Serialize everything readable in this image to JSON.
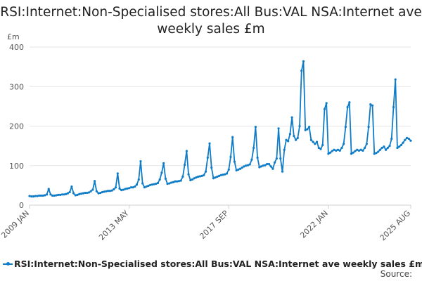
{
  "chart_data": {
    "type": "line",
    "title": "RSI:Internet:Non-Specialised stores:All Bus:VAL NSA:Internet ave weekly sales £m",
    "unit_label": "£m",
    "ylim": [
      0,
      400
    ],
    "yticks": [
      0,
      100,
      200,
      300,
      400
    ],
    "xlim": [
      "2009 JAN",
      "2025 AUG"
    ],
    "xtick_labels": [
      "2009 JAN",
      "2013 MAY",
      "2017 SEP",
      "2022 JAN",
      "2025 AUG"
    ],
    "grid": true,
    "legend_position": "bottom",
    "color": "#0f7cc7",
    "series": [
      {
        "name": "RSI:Internet:Non-Specialised stores:All Bus:VAL NSA:Internet ave weekly sales £m",
        "start": "2009-01",
        "values": [
          23,
          22,
          22,
          23,
          23,
          24,
          24,
          24,
          25,
          27,
          41,
          27,
          24,
          24,
          25,
          26,
          26,
          27,
          27,
          28,
          30,
          33,
          47,
          30,
          25,
          26,
          28,
          29,
          30,
          31,
          31,
          32,
          35,
          39,
          61,
          35,
          30,
          31,
          33,
          34,
          35,
          36,
          36,
          37,
          40,
          45,
          80,
          42,
          38,
          39,
          41,
          42,
          43,
          45,
          45,
          47,
          52,
          65,
          111,
          55,
          45,
          47,
          49,
          51,
          52,
          53,
          54,
          56,
          65,
          82,
          106,
          67,
          54,
          55,
          57,
          58,
          60,
          60,
          61,
          62,
          72,
          102,
          137,
          78,
          63,
          65,
          68,
          70,
          72,
          73,
          74,
          76,
          85,
          120,
          156,
          95,
          68,
          70,
          72,
          74,
          76,
          77,
          78,
          80,
          90,
          122,
          172,
          110,
          88,
          90,
          92,
          95,
          98,
          100,
          101,
          103,
          115,
          145,
          198,
          120,
          96,
          98,
          100,
          101,
          104,
          104,
          98,
          92,
          108,
          118,
          194,
          118,
          85,
          140,
          165,
          162,
          180,
          222,
          175,
          165,
          170,
          200,
          340,
          364,
          190,
          192,
          198,
          165,
          160,
          155,
          160,
          145,
          142,
          152,
          243,
          258,
          130,
          133,
          137,
          140,
          138,
          140,
          138,
          145,
          155,
          198,
          248,
          260,
          130,
          133,
          137,
          140,
          138,
          140,
          138,
          145,
          155,
          198,
          255,
          252,
          130,
          132,
          135,
          140,
          145,
          148,
          140,
          145,
          150,
          168,
          248,
          318,
          145,
          148,
          152,
          158,
          165,
          170,
          168,
          163
        ]
      }
    ]
  },
  "legend": {
    "label": "RSI:Internet:Non-Specialised stores:All Bus:VAL NSA:Internet ave weekly sales £m"
  },
  "source": {
    "label": "Source:"
  }
}
